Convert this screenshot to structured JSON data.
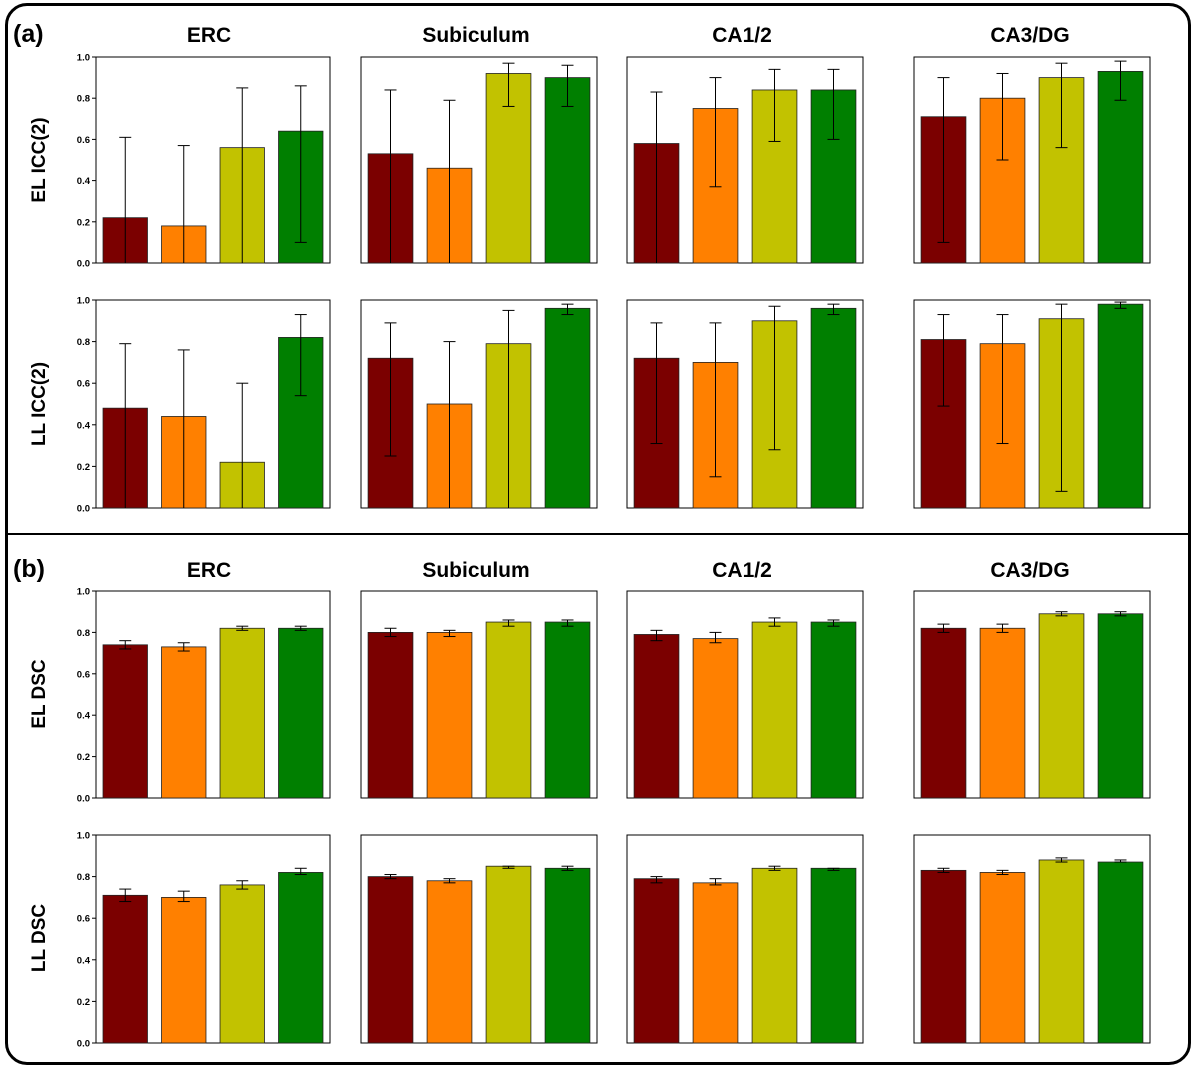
{
  "panels": [
    {
      "label": "(a)",
      "columns": [
        "ERC",
        "Subiculum",
        "CA1/2",
        "CA3/DG"
      ]
    },
    {
      "label": "(b)",
      "columns": [
        "ERC",
        "Subiculum",
        "CA1/2",
        "CA3/DG"
      ]
    }
  ],
  "colors": [
    "#7b0000",
    "#ff8000",
    "#c2c200",
    "#007f00"
  ],
  "chart_data": [
    {
      "type": "bar",
      "panel": "(a)",
      "ylabel": "EL ICC(2)",
      "ylim": [
        0,
        1
      ],
      "yticks": [
        "0.0",
        "0.2",
        "0.4",
        "0.6",
        "0.8",
        "1.0"
      ],
      "subplots": [
        {
          "title": "ERC",
          "values": [
            0.22,
            0.18,
            0.56,
            0.64
          ],
          "err_low": [
            0.0,
            0.0,
            0.0,
            0.1
          ],
          "err_high": [
            0.61,
            0.57,
            0.85,
            0.86
          ]
        },
        {
          "title": "Subiculum",
          "values": [
            0.53,
            0.46,
            0.92,
            0.9
          ],
          "err_low": [
            0.0,
            0.0,
            0.76,
            0.76
          ],
          "err_high": [
            0.84,
            0.79,
            0.97,
            0.96
          ]
        },
        {
          "title": "CA1/2",
          "values": [
            0.58,
            0.75,
            0.84,
            0.84
          ],
          "err_low": [
            0.0,
            0.37,
            0.59,
            0.6
          ],
          "err_high": [
            0.83,
            0.9,
            0.94,
            0.94
          ]
        },
        {
          "title": "CA3/DG",
          "values": [
            0.71,
            0.8,
            0.9,
            0.93
          ],
          "err_low": [
            0.1,
            0.5,
            0.56,
            0.79
          ],
          "err_high": [
            0.9,
            0.92,
            0.97,
            0.98
          ]
        }
      ]
    },
    {
      "type": "bar",
      "panel": "(a)",
      "ylabel": "LL ICC(2)",
      "ylim": [
        0,
        1
      ],
      "yticks": [
        "0.0",
        "0.2",
        "0.4",
        "0.6",
        "0.8",
        "1.0"
      ],
      "subplots": [
        {
          "title": "ERC",
          "values": [
            0.48,
            0.44,
            0.22,
            0.82
          ],
          "err_low": [
            0.0,
            0.0,
            0.0,
            0.54
          ],
          "err_high": [
            0.79,
            0.76,
            0.6,
            0.93
          ]
        },
        {
          "title": "Subiculum",
          "values": [
            0.72,
            0.5,
            0.79,
            0.96
          ],
          "err_low": [
            0.25,
            0.0,
            0.0,
            0.93
          ],
          "err_high": [
            0.89,
            0.8,
            0.95,
            0.98
          ]
        },
        {
          "title": "CA1/2",
          "values": [
            0.72,
            0.7,
            0.9,
            0.96
          ],
          "err_low": [
            0.31,
            0.15,
            0.28,
            0.93
          ],
          "err_high": [
            0.89,
            0.89,
            0.97,
            0.98
          ]
        },
        {
          "title": "CA3/DG",
          "values": [
            0.81,
            0.79,
            0.91,
            0.98
          ],
          "err_low": [
            0.49,
            0.31,
            0.08,
            0.96
          ],
          "err_high": [
            0.93,
            0.93,
            0.98,
            0.99
          ]
        }
      ]
    },
    {
      "type": "bar",
      "panel": "(b)",
      "ylabel": "EL DSC",
      "ylim": [
        0,
        1
      ],
      "yticks": [
        "0.0",
        "0.2",
        "0.4",
        "0.6",
        "0.8",
        "1.0"
      ],
      "subplots": [
        {
          "title": "ERC",
          "values": [
            0.74,
            0.73,
            0.82,
            0.82
          ],
          "err_low": [
            0.72,
            0.71,
            0.81,
            0.81
          ],
          "err_high": [
            0.76,
            0.75,
            0.83,
            0.83
          ]
        },
        {
          "title": "Subiculum",
          "values": [
            0.8,
            0.8,
            0.85,
            0.85
          ],
          "err_low": [
            0.78,
            0.78,
            0.83,
            0.83
          ],
          "err_high": [
            0.82,
            0.81,
            0.86,
            0.86
          ]
        },
        {
          "title": "CA1/2",
          "values": [
            0.79,
            0.77,
            0.85,
            0.85
          ],
          "err_low": [
            0.76,
            0.75,
            0.83,
            0.83
          ],
          "err_high": [
            0.81,
            0.8,
            0.87,
            0.86
          ]
        },
        {
          "title": "CA3/DG",
          "values": [
            0.82,
            0.82,
            0.89,
            0.89
          ],
          "err_low": [
            0.8,
            0.8,
            0.88,
            0.88
          ],
          "err_high": [
            0.84,
            0.84,
            0.9,
            0.9
          ]
        }
      ]
    },
    {
      "type": "bar",
      "panel": "(b)",
      "ylabel": "LL DSC",
      "ylim": [
        0,
        1
      ],
      "yticks": [
        "0.0",
        "0.2",
        "0.4",
        "0.6",
        "0.8",
        "1.0"
      ],
      "subplots": [
        {
          "title": "ERC",
          "values": [
            0.71,
            0.7,
            0.76,
            0.82
          ],
          "err_low": [
            0.68,
            0.68,
            0.74,
            0.81
          ],
          "err_high": [
            0.74,
            0.73,
            0.78,
            0.84
          ]
        },
        {
          "title": "Subiculum",
          "values": [
            0.8,
            0.78,
            0.85,
            0.84
          ],
          "err_low": [
            0.79,
            0.77,
            0.84,
            0.83
          ],
          "err_high": [
            0.81,
            0.79,
            0.85,
            0.85
          ]
        },
        {
          "title": "CA1/2",
          "values": [
            0.79,
            0.77,
            0.84,
            0.84
          ],
          "err_low": [
            0.77,
            0.76,
            0.83,
            0.83
          ],
          "err_high": [
            0.8,
            0.79,
            0.85,
            0.84
          ]
        },
        {
          "title": "CA3/DG",
          "values": [
            0.83,
            0.82,
            0.88,
            0.87
          ],
          "err_low": [
            0.82,
            0.81,
            0.87,
            0.87
          ],
          "err_high": [
            0.84,
            0.83,
            0.89,
            0.88
          ]
        }
      ]
    }
  ]
}
